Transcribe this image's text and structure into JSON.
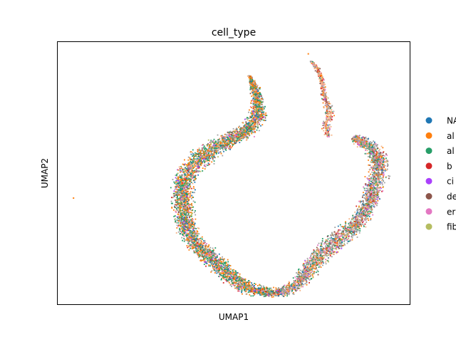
{
  "chart_data": {
    "type": "scatter",
    "title": "cell_type",
    "xlabel": "UMAP1",
    "ylabel": "UMAP2",
    "xlim": [
      0,
      100
    ],
    "ylim": [
      0,
      100
    ],
    "grid": false,
    "legend_placement": "right-outside",
    "legend": [
      {
        "label": "NA",
        "color": "#1f77b4"
      },
      {
        "label": "al",
        "color": "#ff7f0e"
      },
      {
        "label": "al",
        "color": "#279e68"
      },
      {
        "label": "b",
        "color": "#d62728"
      },
      {
        "label": "ci",
        "color": "#aa40fc"
      },
      {
        "label": "de",
        "color": "#8c564b"
      },
      {
        "label": "er",
        "color": "#e377c2"
      },
      {
        "label": "fib",
        "color": "#b5bd61"
      }
    ],
    "extra_colors": [
      "#a0a0a0",
      "#f4b183"
    ],
    "left_arm": [
      [
        54.5,
        87.0
      ],
      [
        56.2,
        82.0
      ],
      [
        57.0,
        76.0
      ],
      [
        56.5,
        70.0
      ],
      [
        53.0,
        65.5
      ],
      [
        48.0,
        62.0
      ],
      [
        43.5,
        59.0
      ],
      [
        40.0,
        55.0
      ],
      [
        36.5,
        49.5
      ],
      [
        35.5,
        43.0
      ],
      [
        35.5,
        36.5
      ],
      [
        36.5,
        30.0
      ],
      [
        38.5,
        24.0
      ],
      [
        43.0,
        18.5
      ],
      [
        47.0,
        13.0
      ],
      [
        51.0,
        8.5
      ],
      [
        55.0,
        5.5
      ],
      [
        59.5,
        4.5
      ],
      [
        63.0,
        4.5
      ]
    ],
    "left_arm_width": [
      0.6,
      1.8,
      2.6,
      3.2,
      3.6,
      4.0,
      4.3,
      4.4,
      4.2,
      4.0,
      3.9,
      3.8,
      3.6,
      3.8,
      3.8,
      3.7,
      3.2,
      2.6,
      2.2
    ],
    "right_arm": [
      [
        63.0,
        4.5
      ],
      [
        66.5,
        6.0
      ],
      [
        69.5,
        10.0
      ],
      [
        72.5,
        15.5
      ],
      [
        76.0,
        20.5
      ],
      [
        80.0,
        25.0
      ],
      [
        84.5,
        30.0
      ],
      [
        86.5,
        34.0
      ],
      [
        88.5,
        39.0
      ],
      [
        90.0,
        45.0
      ],
      [
        91.5,
        52.0
      ],
      [
        90.5,
        58.0
      ],
      [
        87.5,
        61.5
      ],
      [
        84.0,
        63.5
      ]
    ],
    "right_arm_width": [
      2.2,
      2.8,
      3.4,
      3.8,
      4.2,
      4.4,
      4.0,
      3.3,
      3.4,
      3.8,
      3.8,
      3.4,
      3.0,
      2.2
    ],
    "top_branch": [
      [
        77.0,
        63.8
      ],
      [
        76.0,
        68.5
      ],
      [
        77.5,
        72.5
      ],
      [
        76.5,
        76.5
      ],
      [
        75.5,
        81.5
      ],
      [
        75.0,
        86.0
      ],
      [
        73.5,
        90.5
      ],
      [
        72.0,
        92.5
      ]
    ],
    "top_branch_width": [
      1.2,
      1.6,
      2.0,
      1.6,
      1.1,
      0.9,
      0.9,
      0.6
    ],
    "outliers": [
      [
        4.5,
        40.5
      ],
      [
        71.2,
        95.5
      ]
    ]
  }
}
